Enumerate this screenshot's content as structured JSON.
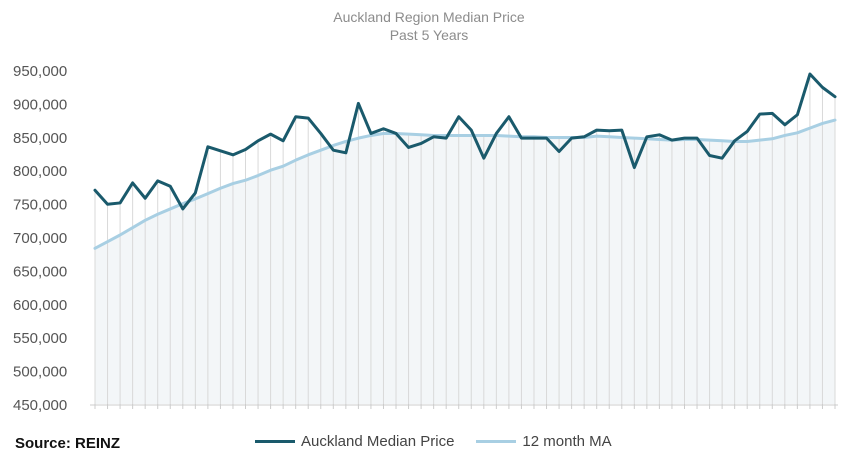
{
  "chart_data": {
    "type": "line",
    "title": "Auckland Region Median Price",
    "subtitle": "Past 5 Years",
    "source": "Source: REINZ",
    "ylim": [
      450000,
      950000
    ],
    "yticks": [
      "450,000",
      "500,000",
      "550,000",
      "600,000",
      "650,000",
      "700,000",
      "750,000",
      "800,000",
      "850,000",
      "900,000",
      "950,000"
    ],
    "grid": "vertical",
    "legend_position": "bottom",
    "series": [
      {
        "name": "Auckland Median Price",
        "color": "#1a5a6c",
        "values": [
          770000,
          749000,
          751000,
          781000,
          758000,
          784000,
          776000,
          742000,
          766000,
          835000,
          829000,
          823000,
          831000,
          844000,
          854000,
          844000,
          880000,
          878000,
          855000,
          830000,
          826000,
          900000,
          855000,
          862000,
          855000,
          834000,
          840000,
          850000,
          848000,
          880000,
          860000,
          818000,
          855000,
          880000,
          848000,
          848000,
          848000,
          828000,
          848000,
          850000,
          860000,
          859000,
          860000,
          804000,
          850000,
          853000,
          845000,
          848000,
          848000,
          822000,
          818000,
          844000,
          858000,
          884000,
          885000,
          868000,
          883000,
          944000,
          924000,
          910000
        ]
      },
      {
        "name": "12 month MA",
        "color": "#a8cfe3",
        "values": [
          683000,
          693000,
          703000,
          714000,
          725000,
          734000,
          742000,
          750000,
          757000,
          765000,
          773000,
          780000,
          785000,
          792000,
          800000,
          806000,
          815000,
          823000,
          830000,
          837000,
          843000,
          848000,
          852000,
          855000,
          855000,
          854000,
          853000,
          852000,
          852000,
          852000,
          852000,
          852000,
          852000,
          851000,
          850000,
          850000,
          849000,
          849000,
          849000,
          849000,
          851000,
          850000,
          849000,
          848000,
          847000,
          846000,
          845000,
          846000,
          846000,
          845000,
          844000,
          843000,
          843000,
          845000,
          847000,
          852000,
          856000,
          863000,
          870000,
          875000
        ]
      }
    ]
  }
}
